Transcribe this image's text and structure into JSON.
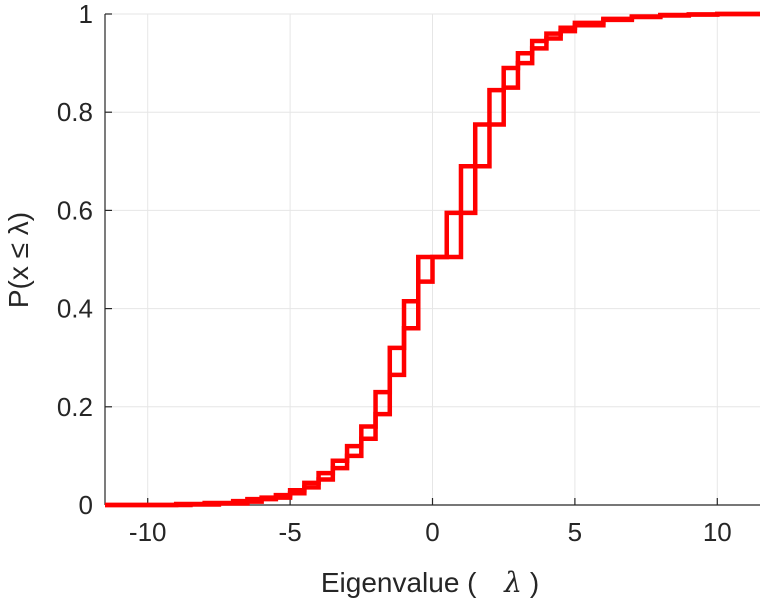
{
  "chart_data": {
    "type": "line",
    "title": "",
    "xlabel": "Eigenvalue (",
    "xlabel_symbol": "λ",
    "xlabel_close": ")",
    "ylabel": "P(x ≤ λ)",
    "xlim": [
      -11.5,
      11.5
    ],
    "ylim": [
      0,
      1
    ],
    "grid": true,
    "xticks": [
      -10,
      -5,
      0,
      5,
      10
    ],
    "xtick_labels": [
      "-10",
      "-5",
      "0",
      "5",
      "10"
    ],
    "yticks": [
      0,
      0.2,
      0.4,
      0.6,
      0.8,
      1
    ],
    "ytick_labels": [
      "0",
      "0.2",
      "0.4",
      "0.6",
      "0.8",
      "1"
    ],
    "series": [
      {
        "color": "#ff0000",
        "step": true,
        "x": [
          -11.5,
          -9,
          -8,
          -7,
          -6.5,
          -5.5,
          -5,
          -4.5,
          -4,
          -3.5,
          -3,
          -2.5,
          -2,
          -1.5,
          -1,
          -0.5,
          0.5,
          1,
          1.5,
          2,
          2.5,
          3,
          3.5,
          4,
          4.5,
          5,
          6,
          7,
          8,
          9,
          10,
          11.5
        ],
        "y": [
          0.0,
          0.002,
          0.004,
          0.008,
          0.012,
          0.02,
          0.03,
          0.045,
          0.065,
          0.09,
          0.12,
          0.16,
          0.23,
          0.32,
          0.415,
          0.505,
          0.595,
          0.69,
          0.775,
          0.845,
          0.89,
          0.92,
          0.945,
          0.96,
          0.972,
          0.982,
          0.99,
          0.995,
          0.998,
          0.999,
          1.0,
          1.0
        ]
      },
      {
        "color": "#ff0000",
        "step": true,
        "x": [
          -11.5,
          -8.5,
          -7.5,
          -6.5,
          -6,
          -5,
          -4.5,
          -4,
          -3.5,
          -3,
          -2.5,
          -2,
          -1.5,
          -1,
          -0.5,
          0,
          1,
          1.5,
          2,
          2.5,
          3,
          3.5,
          4,
          4.5,
          5,
          6,
          7,
          8,
          9,
          10,
          11.5
        ],
        "y": [
          0.0,
          0.001,
          0.003,
          0.007,
          0.015,
          0.024,
          0.036,
          0.052,
          0.075,
          0.1,
          0.135,
          0.185,
          0.265,
          0.36,
          0.455,
          0.505,
          0.595,
          0.69,
          0.775,
          0.85,
          0.9,
          0.93,
          0.95,
          0.965,
          0.977,
          0.988,
          0.994,
          0.997,
          0.999,
          1.0,
          1.0
        ]
      }
    ]
  }
}
